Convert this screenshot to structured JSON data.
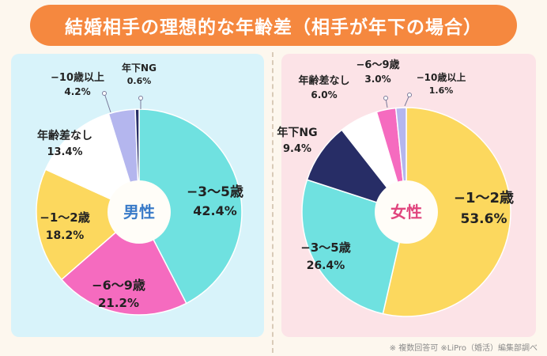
{
  "title": "結婚相手の理想的な年齢差（相手が年下の場合）",
  "footnote": "※ 複数回答可 ※LiPro（婚活）編集部調べ",
  "chart_data": [
    {
      "type": "pie",
      "center_label": "男性",
      "center_label_color": "#3a7bc8",
      "slices": [
        {
          "label": "−3〜5歳",
          "value": 42.4,
          "value_text": "42.4%",
          "color": "#6fe1e0"
        },
        {
          "label": "−6〜9歳",
          "value": 21.2,
          "value_text": "21.2%",
          "color": "#f56bbf"
        },
        {
          "label": "−1〜2歳",
          "value": 18.2,
          "value_text": "18.2%",
          "color": "#fcd85e"
        },
        {
          "label": "年齢差なし",
          "value": 13.4,
          "value_text": "13.4%",
          "color": "#ffffff"
        },
        {
          "label": "−10歳以上",
          "value": 4.2,
          "value_text": "4.2%",
          "color": "#b4b6ee"
        },
        {
          "label": "年下NG",
          "value": 0.6,
          "value_text": "0.6%",
          "color": "#272d66"
        }
      ]
    },
    {
      "type": "pie",
      "center_label": "女性",
      "center_label_color": "#e0457e",
      "slices": [
        {
          "label": "−1〜2歳",
          "value": 53.6,
          "value_text": "53.6%",
          "color": "#fcd85e"
        },
        {
          "label": "−3〜5歳",
          "value": 26.4,
          "value_text": "26.4%",
          "color": "#6fe1e0"
        },
        {
          "label": "年下NG",
          "value": 9.4,
          "value_text": "9.4%",
          "color": "#272d66"
        },
        {
          "label": "年齢差なし",
          "value": 6.0,
          "value_text": "6.0%",
          "color": "#ffffff"
        },
        {
          "label": "−6〜9歳",
          "value": 3.0,
          "value_text": "3.0%",
          "color": "#f56bbf"
        },
        {
          "label": "−10歳以上",
          "value": 1.6,
          "value_text": "1.6%",
          "color": "#b4b6ee"
        }
      ]
    }
  ]
}
